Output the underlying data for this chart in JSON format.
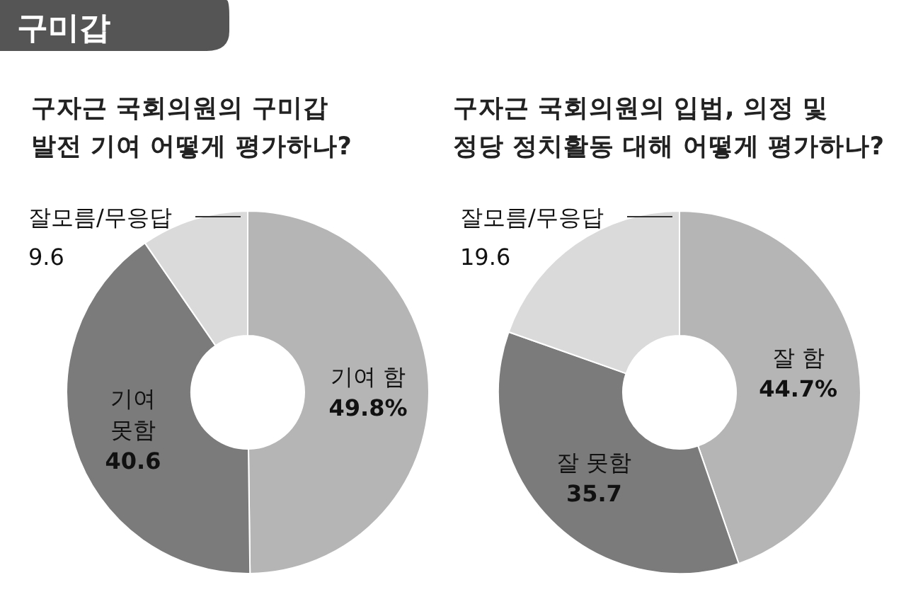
{
  "chart_data": [
    {
      "type": "donut",
      "title": "구자근 국회의원의 구미갑\n발전 기여 어떻게 평가하나?",
      "annotations": [
        "구미갑"
      ],
      "categories": [
        "기여 함",
        "기여\n못함",
        "잘모름/무응답"
      ],
      "values": [
        49.8,
        40.6,
        9.6
      ],
      "colors": [
        "#b5b5b5",
        "#7b7b7b",
        "#dadada"
      ],
      "value_labels": [
        "49.8%",
        "40.6",
        "9.6"
      ]
    },
    {
      "type": "donut",
      "title": "구자근 국회의원의 입법, 의정 및\n정당 정치활동 대해 어떻게 평가하나?",
      "categories": [
        "잘 함",
        "잘 못함",
        "잘모름/무응답"
      ],
      "values": [
        44.7,
        35.7,
        19.6
      ],
      "colors": [
        "#b5b5b5",
        "#7b7b7b",
        "#dadada"
      ],
      "value_labels": [
        "44.7%",
        "35.7",
        "19.6"
      ]
    }
  ]
}
